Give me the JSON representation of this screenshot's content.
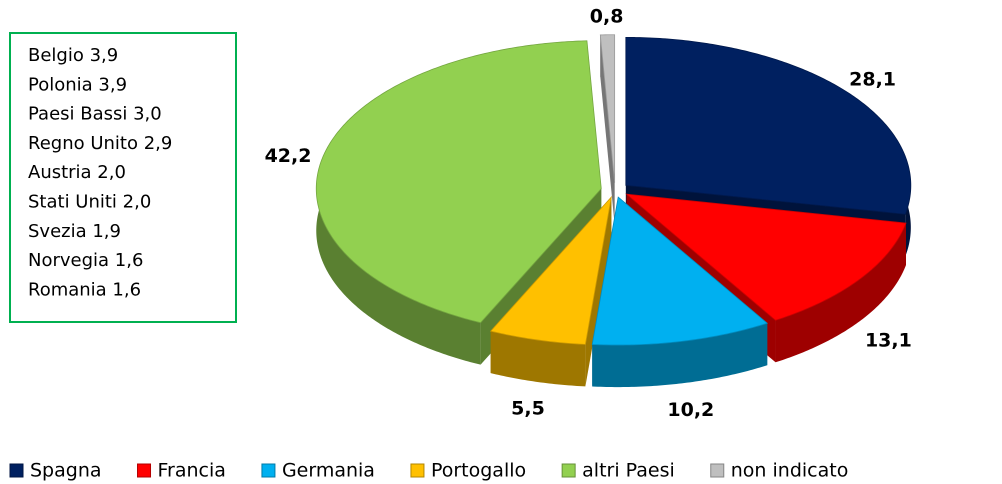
{
  "chart_data": {
    "type": "pie",
    "categories": [
      "Spagna",
      "Francia",
      "Germania",
      "Portogallo",
      "altri Paesi",
      "non indicato"
    ],
    "values": [
      28.1,
      13.1,
      10.2,
      5.5,
      42.2,
      0.8
    ],
    "value_labels": [
      "28,1",
      "13,1",
      "10,2",
      "5,5",
      "42,2",
      "0,8"
    ],
    "colors": [
      "#002060",
      "#ff0000",
      "#00b0f0",
      "#ffc000",
      "#92d050",
      "#bfbfbf"
    ],
    "annotations": [
      "Belgio 3,9",
      "Polonia 3,9",
      "Paesi Bassi 3,0",
      "Regno Unito 2,9",
      "Austria 2,0",
      "Stati Uniti 2,0",
      "Svezia 1,9",
      "Norvegia 1,6",
      "Romania 1,6"
    ],
    "legend": "bottom"
  }
}
